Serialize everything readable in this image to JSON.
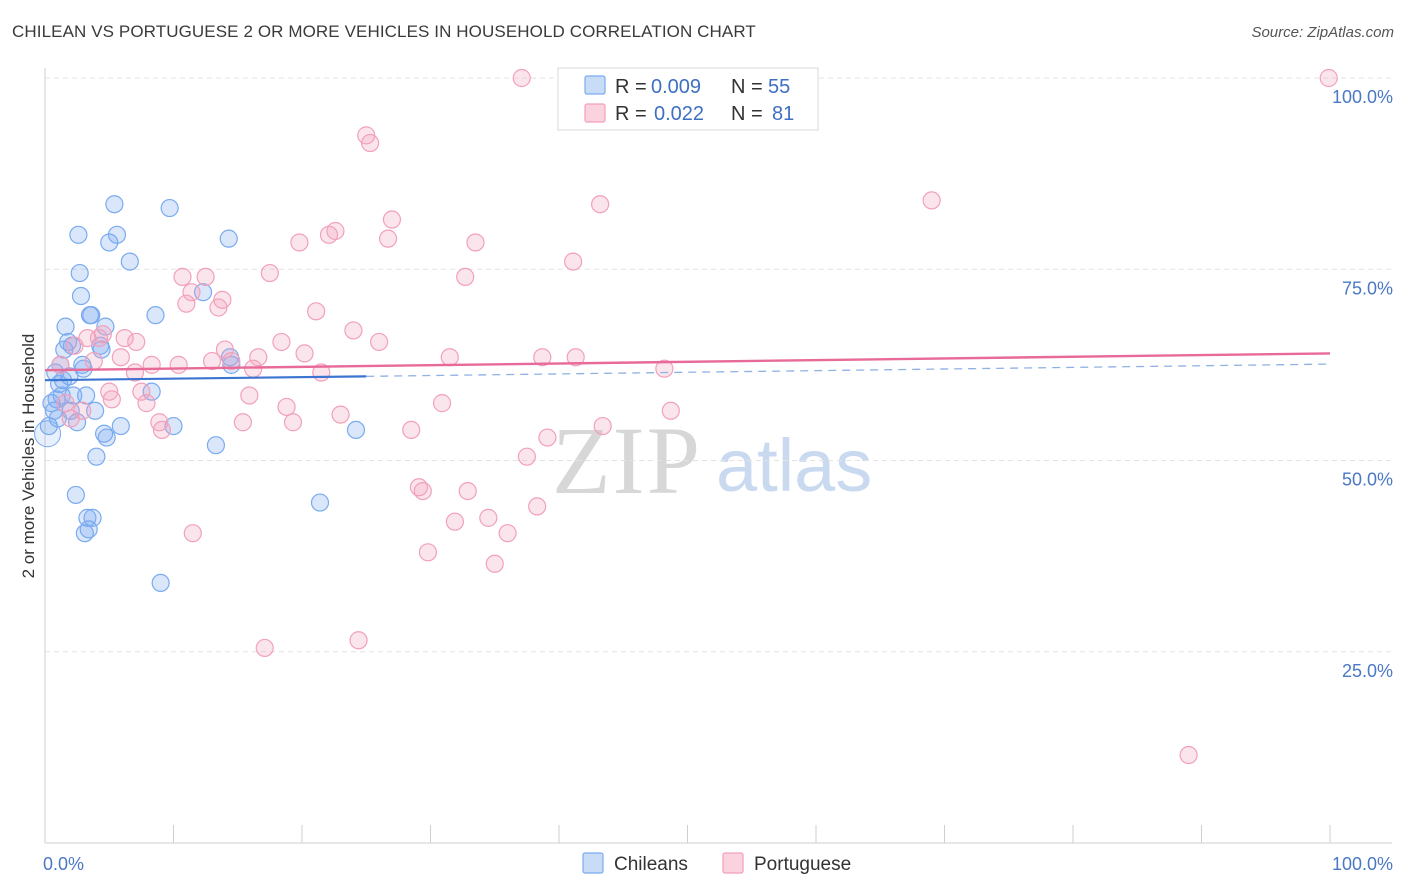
{
  "title": "CHILEAN VS PORTUGUESE 2 OR MORE VEHICLES IN HOUSEHOLD CORRELATION CHART",
  "source": "Source: ZipAtlas.com",
  "colors": {
    "chilean": "#7aaaf0",
    "chilean_line": "#3b74d1",
    "portuguese": "#f2a0bb",
    "portuguese_line": "#e86a98",
    "tick_text": "#4a78c4"
  },
  "legend": {
    "rows": [
      {
        "r_label": "R =",
        "r_value": "0.009",
        "n_label": "N =",
        "n_value": "55"
      },
      {
        "r_label": "R =",
        "r_value": "0.022",
        "n_label": "N =",
        "n_value": "81"
      }
    ]
  },
  "bottom_legend": [
    "Chileans",
    "Portuguese"
  ],
  "watermark": {
    "zip": "ZIP",
    "atlas": "atlas"
  },
  "chart_data": {
    "type": "scatter",
    "title": "CHILEAN VS PORTUGUESE 2 OR MORE VEHICLES IN HOUSEHOLD CORRELATION CHART",
    "ylabel": "2 or more Vehicles in Household",
    "xlabel": "",
    "xlim": [
      0,
      100
    ],
    "ylim": [
      0,
      100
    ],
    "x_tick_labels": [
      "0.0%",
      "100.0%"
    ],
    "y_tick_labels": [
      "25.0%",
      "50.0%",
      "75.0%",
      "100.0%"
    ],
    "y_ticks": [
      25,
      50,
      75,
      100
    ],
    "grid": true,
    "legend_position": "top-center",
    "series": [
      {
        "name": "Chileans",
        "r": 0.009,
        "n": 55,
        "trend": {
          "x0": 0,
          "y0": 60.5,
          "x1": 25,
          "y1": 61.0,
          "dashed_to_x": 100,
          "dashed_y1": 62.6
        },
        "points": [
          [
            0.3,
            54.5
          ],
          [
            0.5,
            57.5
          ],
          [
            0.7,
            56.5
          ],
          [
            0.8,
            61.5
          ],
          [
            0.9,
            58.0
          ],
          [
            1.0,
            55.5
          ],
          [
            1.2,
            62.5
          ],
          [
            1.4,
            60.5
          ],
          [
            1.5,
            64.5
          ],
          [
            1.6,
            67.5
          ],
          [
            1.8,
            65.5
          ],
          [
            1.9,
            61.0
          ],
          [
            2.0,
            56.5
          ],
          [
            2.2,
            58.5
          ],
          [
            2.4,
            45.5
          ],
          [
            2.5,
            55.0
          ],
          [
            2.6,
            79.5
          ],
          [
            2.7,
            74.5
          ],
          [
            2.8,
            71.5
          ],
          [
            2.9,
            62.5
          ],
          [
            3.0,
            62.0
          ],
          [
            3.1,
            40.5
          ],
          [
            3.2,
            58.5
          ],
          [
            3.3,
            42.5
          ],
          [
            3.4,
            41.0
          ],
          [
            3.5,
            69.0
          ],
          [
            3.7,
            42.5
          ],
          [
            3.9,
            56.5
          ],
          [
            4.0,
            50.5
          ],
          [
            4.3,
            65.0
          ],
          [
            4.6,
            53.5
          ],
          [
            4.7,
            67.5
          ],
          [
            4.8,
            53.0
          ],
          [
            5.0,
            78.5
          ],
          [
            5.4,
            83.5
          ],
          [
            5.6,
            79.5
          ],
          [
            5.9,
            54.5
          ],
          [
            6.6,
            76.0
          ],
          [
            8.3,
            59.0
          ],
          [
            8.6,
            69.0
          ],
          [
            9.0,
            34.0
          ],
          [
            9.7,
            83.0
          ],
          [
            10.0,
            54.5
          ],
          [
            12.3,
            72.0
          ],
          [
            13.3,
            52.0
          ],
          [
            14.3,
            79.0
          ],
          [
            14.4,
            63.5
          ],
          [
            14.5,
            62.5
          ],
          [
            21.4,
            44.5
          ],
          [
            24.2,
            54.0
          ],
          [
            1.1,
            60.0
          ],
          [
            1.3,
            58.5
          ],
          [
            2.1,
            65.0
          ],
          [
            3.6,
            69.0
          ],
          [
            4.4,
            64.5
          ]
        ]
      },
      {
        "name": "Portuguese",
        "r": 0.022,
        "n": 81,
        "trend": {
          "x0": 0,
          "y0": 61.8,
          "x1": 100,
          "y1": 64.0
        },
        "points": [
          [
            1.2,
            62.5
          ],
          [
            1.6,
            57.5
          ],
          [
            2.0,
            55.5
          ],
          [
            2.3,
            65.0
          ],
          [
            2.9,
            56.5
          ],
          [
            3.3,
            66.0
          ],
          [
            3.8,
            63.0
          ],
          [
            4.5,
            66.5
          ],
          [
            5.0,
            59.0
          ],
          [
            5.2,
            58.0
          ],
          [
            5.9,
            63.5
          ],
          [
            6.2,
            66.0
          ],
          [
            7.1,
            65.5
          ],
          [
            7.5,
            59.0
          ],
          [
            7.9,
            57.5
          ],
          [
            8.3,
            62.5
          ],
          [
            8.9,
            55.0
          ],
          [
            9.1,
            54.0
          ],
          [
            10.4,
            62.5
          ],
          [
            10.7,
            74.0
          ],
          [
            11.0,
            70.5
          ],
          [
            11.4,
            72.0
          ],
          [
            11.5,
            40.5
          ],
          [
            12.5,
            74.0
          ],
          [
            13.0,
            63.0
          ],
          [
            13.5,
            70.0
          ],
          [
            13.8,
            71.0
          ],
          [
            14.0,
            64.5
          ],
          [
            14.5,
            63.0
          ],
          [
            15.4,
            55.0
          ],
          [
            15.9,
            58.5
          ],
          [
            16.2,
            62.0
          ],
          [
            16.6,
            63.5
          ],
          [
            17.1,
            25.5
          ],
          [
            17.5,
            74.5
          ],
          [
            18.4,
            65.5
          ],
          [
            18.8,
            57.0
          ],
          [
            19.3,
            55.0
          ],
          [
            19.8,
            78.5
          ],
          [
            20.2,
            64.0
          ],
          [
            21.1,
            69.5
          ],
          [
            21.5,
            61.5
          ],
          [
            22.1,
            79.5
          ],
          [
            22.6,
            80.0
          ],
          [
            23.0,
            56.0
          ],
          [
            24.0,
            67.0
          ],
          [
            24.4,
            26.5
          ],
          [
            25.0,
            92.5
          ],
          [
            25.3,
            91.5
          ],
          [
            26.0,
            65.5
          ],
          [
            26.7,
            79.0
          ],
          [
            27.0,
            81.5
          ],
          [
            28.5,
            54.0
          ],
          [
            29.1,
            46.5
          ],
          [
            29.4,
            46.0
          ],
          [
            29.8,
            38.0
          ],
          [
            30.9,
            57.5
          ],
          [
            31.5,
            63.5
          ],
          [
            31.9,
            42.0
          ],
          [
            32.7,
            74.0
          ],
          [
            32.9,
            46.0
          ],
          [
            33.5,
            78.5
          ],
          [
            34.5,
            42.5
          ],
          [
            35.0,
            36.5
          ],
          [
            36.0,
            40.5
          ],
          [
            37.1,
            100.0
          ],
          [
            37.5,
            50.5
          ],
          [
            38.3,
            44.0
          ],
          [
            38.7,
            63.5
          ],
          [
            39.1,
            53.0
          ],
          [
            41.1,
            76.0
          ],
          [
            41.3,
            63.5
          ],
          [
            43.2,
            83.5
          ],
          [
            43.4,
            54.5
          ],
          [
            48.2,
            62.0
          ],
          [
            48.7,
            56.5
          ],
          [
            69.0,
            84.0
          ],
          [
            89.0,
            11.5
          ],
          [
            99.9,
            100.0
          ],
          [
            4.2,
            66.0
          ],
          [
            7.0,
            61.5
          ]
        ]
      }
    ]
  }
}
